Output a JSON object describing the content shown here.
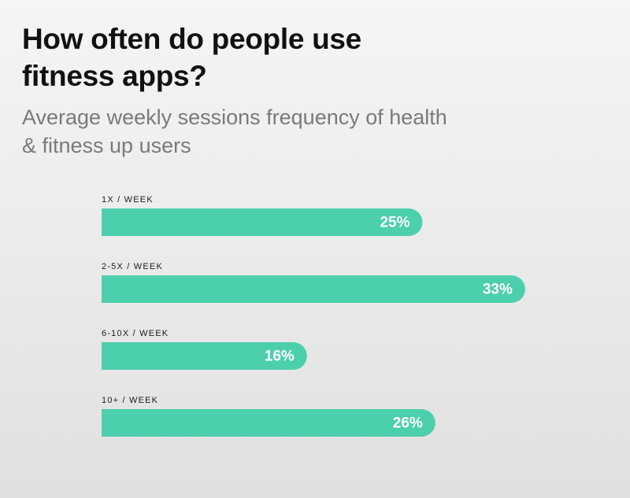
{
  "header": {
    "title": "How often do people use fitness apps?",
    "subtitle": "Average weekly sessions frequency of health & fitness up users"
  },
  "colors": {
    "bar": "#4ccfac",
    "value_label": "#ffffff",
    "category_label": "#1a1a1a"
  },
  "chart_data": {
    "type": "bar",
    "orientation": "horizontal",
    "title": "How often do people use fitness apps?",
    "subtitle": "Average weekly sessions frequency of health & fitness up users",
    "categories": [
      "1X / WEEK",
      "2-5X / WEEK",
      "6-10X / WEEK",
      "10+ / WEEK"
    ],
    "values": [
      25,
      33,
      16,
      26
    ],
    "value_labels": [
      "25%",
      "33%",
      "16%",
      "26%"
    ],
    "unit": "%",
    "xlabel": "",
    "ylabel": "",
    "grid": false,
    "legend": "none"
  }
}
